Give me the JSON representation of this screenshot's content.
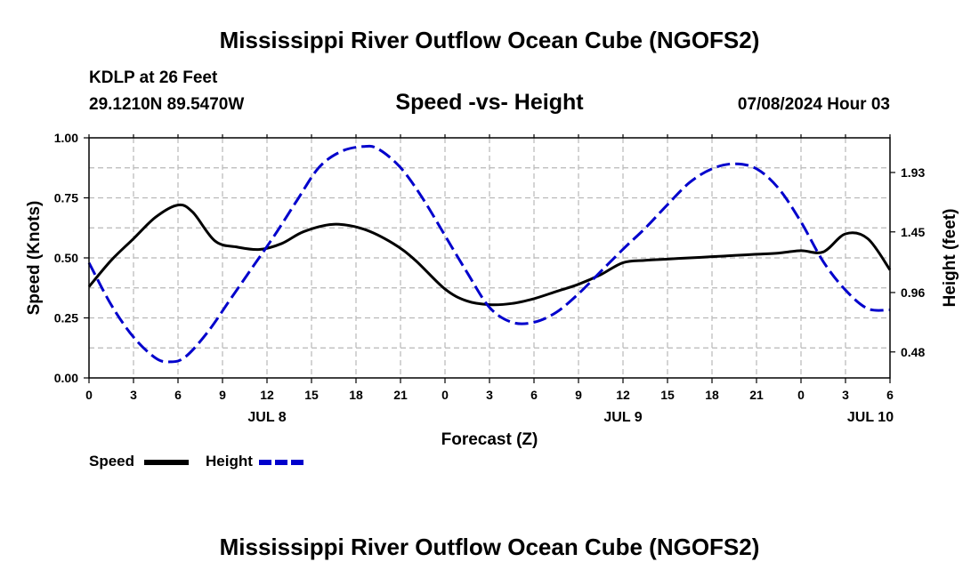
{
  "title": "Mississippi River Outflow Ocean Cube (NGOFS2)",
  "footer_title": "Mississippi River Outflow Ocean Cube (NGOFS2)",
  "station": "KDLP at 26 Feet",
  "coords": "29.1210N  89.5470W",
  "subtitle": "Speed -vs- Height",
  "datetime": "07/08/2024 Hour 03",
  "colors": {
    "speed": "#000000",
    "height": "#0000cc",
    "grid": "#b8b8b8"
  },
  "chart_data": {
    "type": "line",
    "title": "Speed -vs- Height",
    "xlabel": "Forecast (Z)",
    "ylabel": "Speed (Knots)",
    "y2label": "Height (feet)",
    "x_unit": "hours since 07/08/2024 00Z",
    "xlim": [
      0,
      54
    ],
    "ylim": [
      0,
      1
    ],
    "y2lim": [
      0.27,
      2.21
    ],
    "x_ticks": [
      0,
      3,
      6,
      9,
      12,
      15,
      18,
      21,
      24,
      27,
      30,
      33,
      36,
      39,
      42,
      45,
      48,
      51,
      54
    ],
    "x_tick_labels": [
      "0",
      "3",
      "6",
      "9",
      "12",
      "15",
      "18",
      "21",
      "0",
      "3",
      "6",
      "9",
      "12",
      "15",
      "18",
      "21",
      "0",
      "3",
      "6"
    ],
    "y_ticks": [
      0,
      0.25,
      0.5,
      0.75,
      1.0
    ],
    "y_tick_labels": [
      "0.00",
      "0.25",
      "0.50",
      "0.75",
      "1.00"
    ],
    "y2_ticks": [
      0.48,
      0.96,
      1.45,
      1.93
    ],
    "y2_tick_labels": [
      "0.48",
      "0.96",
      "1.45",
      "1.93"
    ],
    "day_labels": [
      {
        "x": 12,
        "label": "JUL 8"
      },
      {
        "x": 36,
        "label": "JUL 9"
      },
      {
        "x": 54,
        "label": "JUL 10"
      }
    ],
    "grid": true,
    "series": [
      {
        "name": "Speed",
        "axis": "left",
        "style": "solid",
        "x": [
          0,
          1.5,
          3,
          4.5,
          6,
          7,
          8.5,
          10,
          11.5,
          13,
          14.5,
          16.5,
          18.5,
          20.5,
          22,
          24,
          25.5,
          27,
          28.5,
          30,
          31.5,
          33,
          34.5,
          36,
          37.5,
          39,
          40.5,
          42,
          43.5,
          45,
          46.5,
          48,
          49.5,
          51,
          52.5,
          54
        ],
        "values": [
          0.38,
          0.49,
          0.58,
          0.67,
          0.72,
          0.69,
          0.57,
          0.545,
          0.535,
          0.56,
          0.61,
          0.64,
          0.62,
          0.56,
          0.49,
          0.37,
          0.32,
          0.305,
          0.31,
          0.33,
          0.36,
          0.39,
          0.43,
          0.48,
          0.49,
          0.495,
          0.5,
          0.505,
          0.51,
          0.515,
          0.52,
          0.53,
          0.525,
          0.6,
          0.58,
          0.45
        ]
      },
      {
        "name": "Height",
        "axis": "right",
        "style": "dashed",
        "x": [
          0,
          1.5,
          3,
          4.5,
          5.5,
          6.5,
          8,
          9.5,
          11,
          12.5,
          14,
          15.5,
          17,
          18.5,
          19.5,
          21,
          22.5,
          24,
          25.5,
          27,
          28.5,
          30,
          31.5,
          33,
          34.5,
          36,
          37.5,
          39,
          40.5,
          42,
          43.5,
          45,
          46.5,
          48,
          49.5,
          51,
          52.5,
          54
        ],
        "values": [
          1.2,
          0.86,
          0.6,
          0.43,
          0.4,
          0.44,
          0.64,
          0.9,
          1.16,
          1.42,
          1.7,
          1.97,
          2.1,
          2.14,
          2.12,
          1.97,
          1.72,
          1.42,
          1.12,
          0.84,
          0.72,
          0.72,
          0.8,
          0.95,
          1.13,
          1.31,
          1.48,
          1.67,
          1.85,
          1.96,
          2.0,
          1.96,
          1.8,
          1.53,
          1.21,
          0.98,
          0.83,
          0.82
        ]
      }
    ],
    "legend": [
      {
        "label": "Speed",
        "style": "solid"
      },
      {
        "label": "Height",
        "style": "dashed"
      }
    ],
    "legend_position": "bottom-left"
  }
}
